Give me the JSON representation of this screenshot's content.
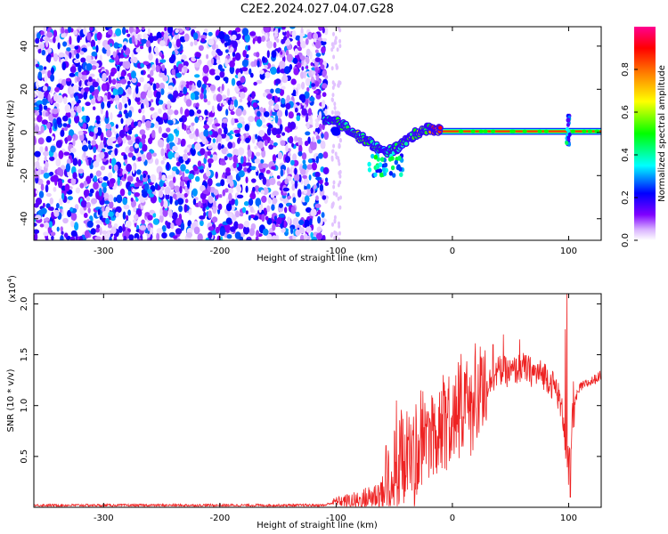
{
  "title": "C2E2.2024.027.04.07.G28",
  "chart_data": [
    {
      "type": "heatmap",
      "xlabel": "Height of straight line (km)",
      "ylabel": "Frequency (Hz)",
      "xlim": [
        -360,
        128
      ],
      "ylim": [
        -50,
        49
      ],
      "xticks": [
        -300,
        -200,
        -100,
        0,
        100
      ],
      "yticks": [
        -40,
        -20,
        0,
        20,
        40
      ],
      "colorbar": {
        "label": "Normalized spectral amplitude",
        "range": [
          0,
          1
        ],
        "ticks": [
          0.0,
          0.2,
          0.4,
          0.6,
          0.8
        ],
        "tick_labels": [
          "0.0",
          "0.2",
          "0.4",
          "0.6",
          "0.8"
        ],
        "colormap": [
          "#ffffff",
          "#7f00ff",
          "#0000ff",
          "#00ffff",
          "#00ff00",
          "#ffff00",
          "#ff8000",
          "#ff0000",
          "#ff0080"
        ]
      },
      "noise_region": {
        "x": [
          -360,
          -108
        ],
        "y": [
          -50,
          49
        ],
        "amplitude_range": [
          0.0,
          0.3
        ]
      },
      "ridge": [
        {
          "x": -108,
          "freq": 5,
          "amp": 0.5
        },
        {
          "x": -100,
          "freq": 5,
          "amp": 0.55
        },
        {
          "x": -90,
          "freq": 2,
          "amp": 0.55
        },
        {
          "x": -80,
          "freq": -2,
          "amp": 0.5
        },
        {
          "x": -70,
          "freq": -5,
          "amp": 0.45
        },
        {
          "x": -60,
          "freq": -9,
          "amp": 0.45
        },
        {
          "x": -50,
          "freq": -8,
          "amp": 0.45
        },
        {
          "x": -40,
          "freq": -4,
          "amp": 0.5
        },
        {
          "x": -30,
          "freq": 0,
          "amp": 0.6
        },
        {
          "x": -20,
          "freq": 2,
          "amp": 0.65
        },
        {
          "x": -10,
          "freq": 1,
          "amp": 0.9
        },
        {
          "x": 0,
          "freq": 0.5,
          "amp": 1.0
        },
        {
          "x": 50,
          "freq": 0.5,
          "amp": 1.0
        },
        {
          "x": 100,
          "freq": 0.5,
          "amp": 1.0
        },
        {
          "x": 128,
          "freq": 0.5,
          "amp": 1.0
        }
      ]
    },
    {
      "type": "line",
      "xlabel": "Height of straight line (km)",
      "ylabel": "SNR (10 * v/v)",
      "y_multiplier": "(x10",
      "y_multiplier_exp": "4",
      "y_multiplier_close": ")",
      "xlim": [
        -360,
        128
      ],
      "ylim": [
        0,
        2.1
      ],
      "xticks": [
        -300,
        -200,
        -100,
        0,
        100
      ],
      "yticks": [
        0.5,
        1.0,
        1.5,
        2.0
      ],
      "ytick_labels": [
        "0.5",
        "1.0",
        "1.5",
        "2.0"
      ],
      "line_color": "#ee2222",
      "envelope": [
        {
          "x": -360,
          "y": 0.02
        },
        {
          "x": -110,
          "y": 0.02
        },
        {
          "x": -100,
          "y": 0.06
        },
        {
          "x": -90,
          "y": 0.06
        },
        {
          "x": -80,
          "y": 0.06
        },
        {
          "x": -70,
          "y": 0.1
        },
        {
          "x": -60,
          "y": 0.15
        },
        {
          "x": -50,
          "y": 0.35
        },
        {
          "x": -40,
          "y": 0.5
        },
        {
          "x": -30,
          "y": 0.55
        },
        {
          "x": -20,
          "y": 0.68
        },
        {
          "x": -10,
          "y": 0.78
        },
        {
          "x": 0,
          "y": 0.85
        },
        {
          "x": 10,
          "y": 0.95
        },
        {
          "x": 20,
          "y": 1.1
        },
        {
          "x": 30,
          "y": 1.2
        },
        {
          "x": 40,
          "y": 1.35
        },
        {
          "x": 50,
          "y": 1.32
        },
        {
          "x": 60,
          "y": 1.38
        },
        {
          "x": 70,
          "y": 1.32
        },
        {
          "x": 80,
          "y": 1.3
        },
        {
          "x": 90,
          "y": 1.15
        },
        {
          "x": 96,
          "y": 0.85
        },
        {
          "x": 100,
          "y": 0.3
        },
        {
          "x": 104,
          "y": 1.0
        },
        {
          "x": 110,
          "y": 1.18
        },
        {
          "x": 120,
          "y": 1.24
        },
        {
          "x": 128,
          "y": 1.3
        }
      ],
      "spikes": [
        {
          "x": 98.5,
          "y": 2.1
        },
        {
          "x": 97,
          "y": 1.75
        },
        {
          "x": -48,
          "y": 1.05
        },
        {
          "x": -27,
          "y": 1.15
        },
        {
          "x": -8,
          "y": 1.3
        },
        {
          "x": 35,
          "y": 1.6
        },
        {
          "x": 44,
          "y": 1.7
        },
        {
          "x": 58,
          "y": 1.65
        },
        {
          "x": 101.5,
          "y": 0.1
        }
      ]
    }
  ]
}
